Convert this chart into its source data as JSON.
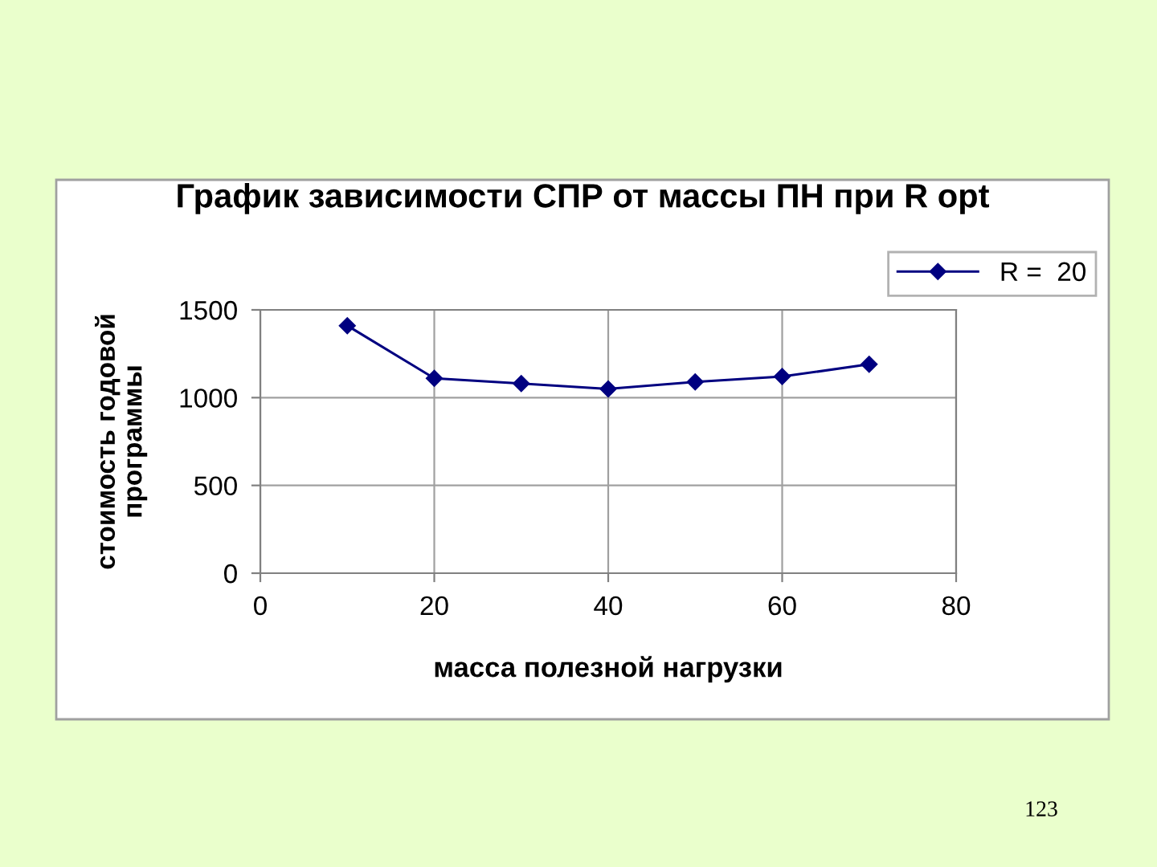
{
  "chart_data": {
    "type": "line",
    "title": "График зависимости СПР от массы ПН при R opt",
    "xlabel": "масса полезной нагрузки",
    "ylabel": "стоимость годовой\nпрограммы",
    "x": [
      10,
      20,
      30,
      40,
      50,
      60,
      70
    ],
    "series": [
      {
        "name": "R =  20",
        "color": "#000080",
        "values": [
          1410,
          1110,
          1080,
          1050,
          1090,
          1120,
          1190
        ]
      }
    ],
    "xlim": [
      0,
      80
    ],
    "xticks": [
      0,
      20,
      40,
      60,
      80
    ],
    "ylim": [
      0,
      1500
    ],
    "yticks": [
      0,
      500,
      1000,
      1500
    ],
    "grid": true,
    "legend": "top right",
    "marker": "diamond",
    "line_style": "solid",
    "annotations": [
      "123"
    ]
  }
}
